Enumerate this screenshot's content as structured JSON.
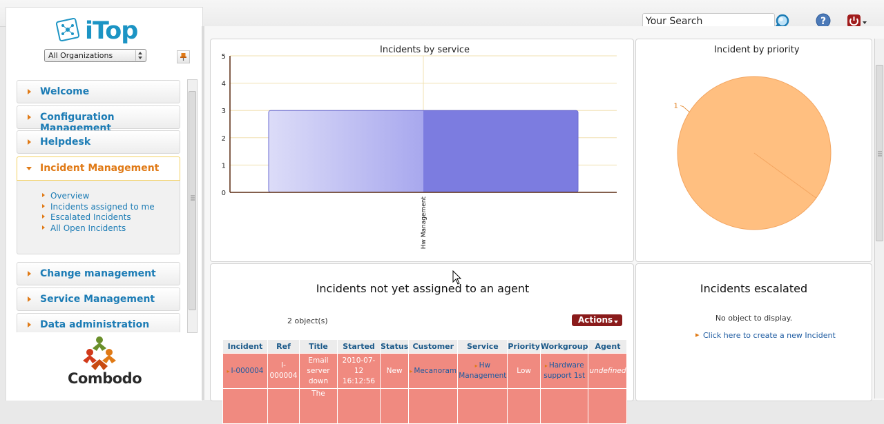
{
  "header": {
    "search_placeholder": "Your Search",
    "search_value": "Your Search",
    "icons": {
      "search": "magnifier-icon",
      "help": "help-icon",
      "logoff": "power-icon"
    }
  },
  "sidebar": {
    "logo_text": "iTop",
    "org_select": {
      "selected": "All Organizations"
    },
    "menu": [
      {
        "label": "Welcome"
      },
      {
        "label": "Configuration Management"
      },
      {
        "label": "Helpdesk"
      },
      {
        "label": "Incident Management",
        "expanded": true,
        "items": [
          "Overview",
          "Incidents assigned to me",
          "Escalated Incidents",
          "All Open Incidents"
        ]
      },
      {
        "label": "Change management"
      },
      {
        "label": "Service Management"
      },
      {
        "label": "Data administration"
      }
    ],
    "footer_logo": "Combodo"
  },
  "dashboard": {
    "chart_service": {
      "title": "Incidents by service"
    },
    "chart_priority": {
      "title": "Incident by priority"
    },
    "unassigned": {
      "title": "Incidents not yet assigned to an agent",
      "count_text": "2 object(s)",
      "actions_label": "Actions",
      "columns": [
        "Incident",
        "Ref",
        "Title",
        "Started",
        "Status",
        "Customer",
        "Service",
        "Priority",
        "Workgroup",
        "Agent"
      ],
      "rows": [
        {
          "incident": "I-000004",
          "ref": "I-000004",
          "title": "Email server down",
          "started": "2010-07-12 16:12:56",
          "status": "New",
          "customer": "Mecanoram",
          "service": "Hw Management",
          "priority": "Low",
          "workgroup": "Hardware support 1st",
          "agent": "undefined"
        },
        {
          "title": "The"
        }
      ]
    },
    "escalated": {
      "title": "Incidents escalated",
      "empty_text": "No object to display.",
      "create_link": "Click here to create a new Incident"
    }
  },
  "chart_data": [
    {
      "type": "bar",
      "title": "Incidents by service",
      "categories": [
        "Hw Management"
      ],
      "values": [
        3
      ],
      "ylim": [
        0,
        5
      ],
      "yticks": [
        0,
        1,
        2,
        3,
        4,
        5
      ],
      "grid": true,
      "colors": {
        "bar": "#7c7ce0",
        "grid": "#f0e0b0",
        "axis": "#5a2a10"
      }
    },
    {
      "type": "pie",
      "title": "Incident by priority",
      "slices": [
        {
          "label": "1",
          "value": 1
        }
      ],
      "colors": {
        "slice": "#ffbf80",
        "label": "#e07a16"
      }
    }
  ]
}
